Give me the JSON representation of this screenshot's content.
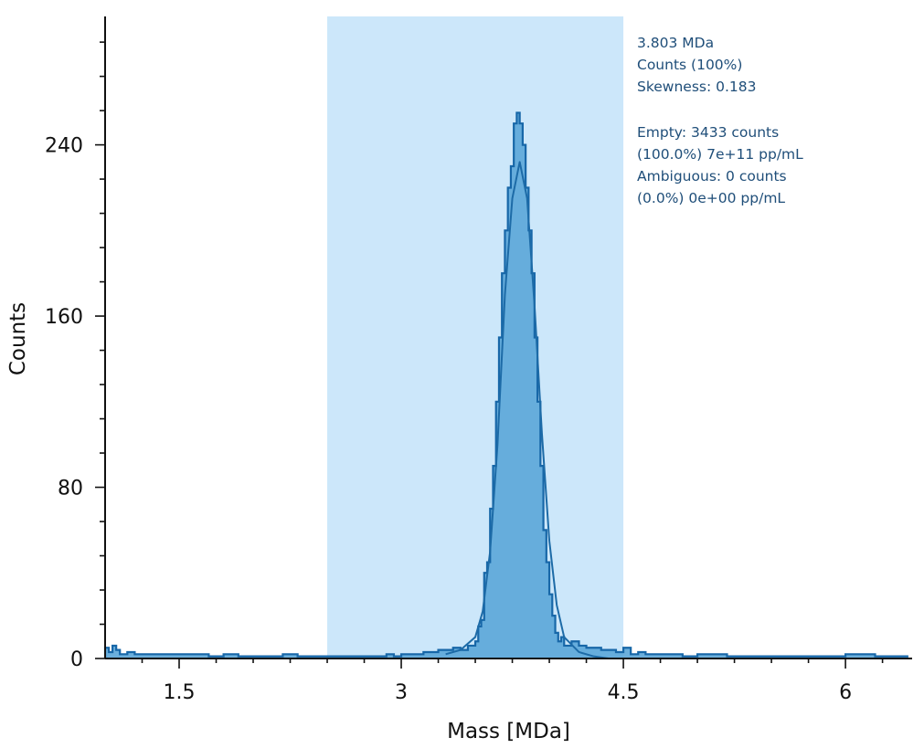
{
  "chart_data": {
    "type": "area",
    "xlabel": "Mass [MDa]",
    "ylabel": "Counts",
    "xlim": [
      1.0,
      6.45
    ],
    "ylim": [
      0,
      300
    ],
    "x_ticks": [
      1.5,
      3,
      4.5,
      6
    ],
    "x_tick_labels": [
      "1.5",
      "3",
      "4.5",
      "6"
    ],
    "y_ticks": [
      0,
      80,
      160,
      240
    ],
    "y_tick_labels": [
      "0",
      "80",
      "160",
      "240"
    ],
    "grid": false,
    "selection_range": [
      2.5,
      4.5
    ],
    "annotations": {
      "peak_lines": [
        "3.803 MDa",
        "Counts (100%)",
        "Skewness: 0.183"
      ],
      "population_lines": [
        "Empty: 3433 counts",
        "(100.0%) 7e+11 pp/mL",
        "Ambiguous: 0 counts",
        "(0.0%) 0e+00 pp/mL"
      ]
    },
    "series": [
      {
        "kind": "histogram",
        "x": [
          1.0,
          1.025,
          1.05,
          1.075,
          1.1,
          1.15,
          1.2,
          1.3,
          1.4,
          1.5,
          1.6,
          1.7,
          1.8,
          1.9,
          2.0,
          2.1,
          2.2,
          2.3,
          2.4,
          2.5,
          2.6,
          2.7,
          2.8,
          2.9,
          2.95,
          3.0,
          3.05,
          3.1,
          3.15,
          3.2,
          3.25,
          3.3,
          3.35,
          3.4,
          3.45,
          3.5,
          3.52,
          3.54,
          3.56,
          3.58,
          3.6,
          3.62,
          3.64,
          3.66,
          3.68,
          3.7,
          3.72,
          3.74,
          3.76,
          3.78,
          3.8,
          3.82,
          3.84,
          3.86,
          3.88,
          3.9,
          3.92,
          3.94,
          3.96,
          3.98,
          4.0,
          4.02,
          4.04,
          4.06,
          4.08,
          4.1,
          4.15,
          4.2,
          4.25,
          4.3,
          4.35,
          4.4,
          4.45,
          4.5,
          4.55,
          4.6,
          4.65,
          4.7,
          4.8,
          4.9,
          5.0,
          5.2,
          5.4,
          5.6,
          5.8,
          6.0,
          6.2,
          6.4
        ],
        "y": [
          5,
          3,
          6,
          4,
          2,
          3,
          2,
          2,
          2,
          2,
          2,
          1,
          2,
          1,
          1,
          1,
          2,
          1,
          1,
          1,
          1,
          1,
          1,
          2,
          1,
          2,
          2,
          2,
          3,
          3,
          4,
          4,
          5,
          4,
          6,
          8,
          15,
          18,
          40,
          45,
          70,
          90,
          120,
          150,
          180,
          200,
          220,
          230,
          250,
          255,
          250,
          240,
          220,
          200,
          180,
          150,
          120,
          90,
          60,
          45,
          30,
          20,
          12,
          8,
          10,
          6,
          8,
          6,
          5,
          5,
          4,
          4,
          3,
          5,
          2,
          3,
          2,
          2,
          2,
          1,
          2,
          1,
          1,
          1,
          1,
          2,
          1,
          1
        ]
      },
      {
        "kind": "fit",
        "x": [
          3.3,
          3.4,
          3.5,
          3.55,
          3.6,
          3.65,
          3.7,
          3.75,
          3.8,
          3.85,
          3.9,
          3.95,
          4.0,
          4.05,
          4.1,
          4.2,
          4.3,
          4.4
        ],
        "y": [
          2,
          4,
          10,
          22,
          50,
          100,
          170,
          215,
          232,
          215,
          165,
          105,
          55,
          25,
          10,
          3,
          1,
          0
        ]
      }
    ],
    "colors": {
      "selection_fill": "#cce7fa",
      "histogram_fill": "#5ba6d8",
      "histogram_line": "#1767a8",
      "fit_line": "#1d6ba7",
      "axis": "#111111",
      "annotation_text": "#1f4e79"
    }
  }
}
